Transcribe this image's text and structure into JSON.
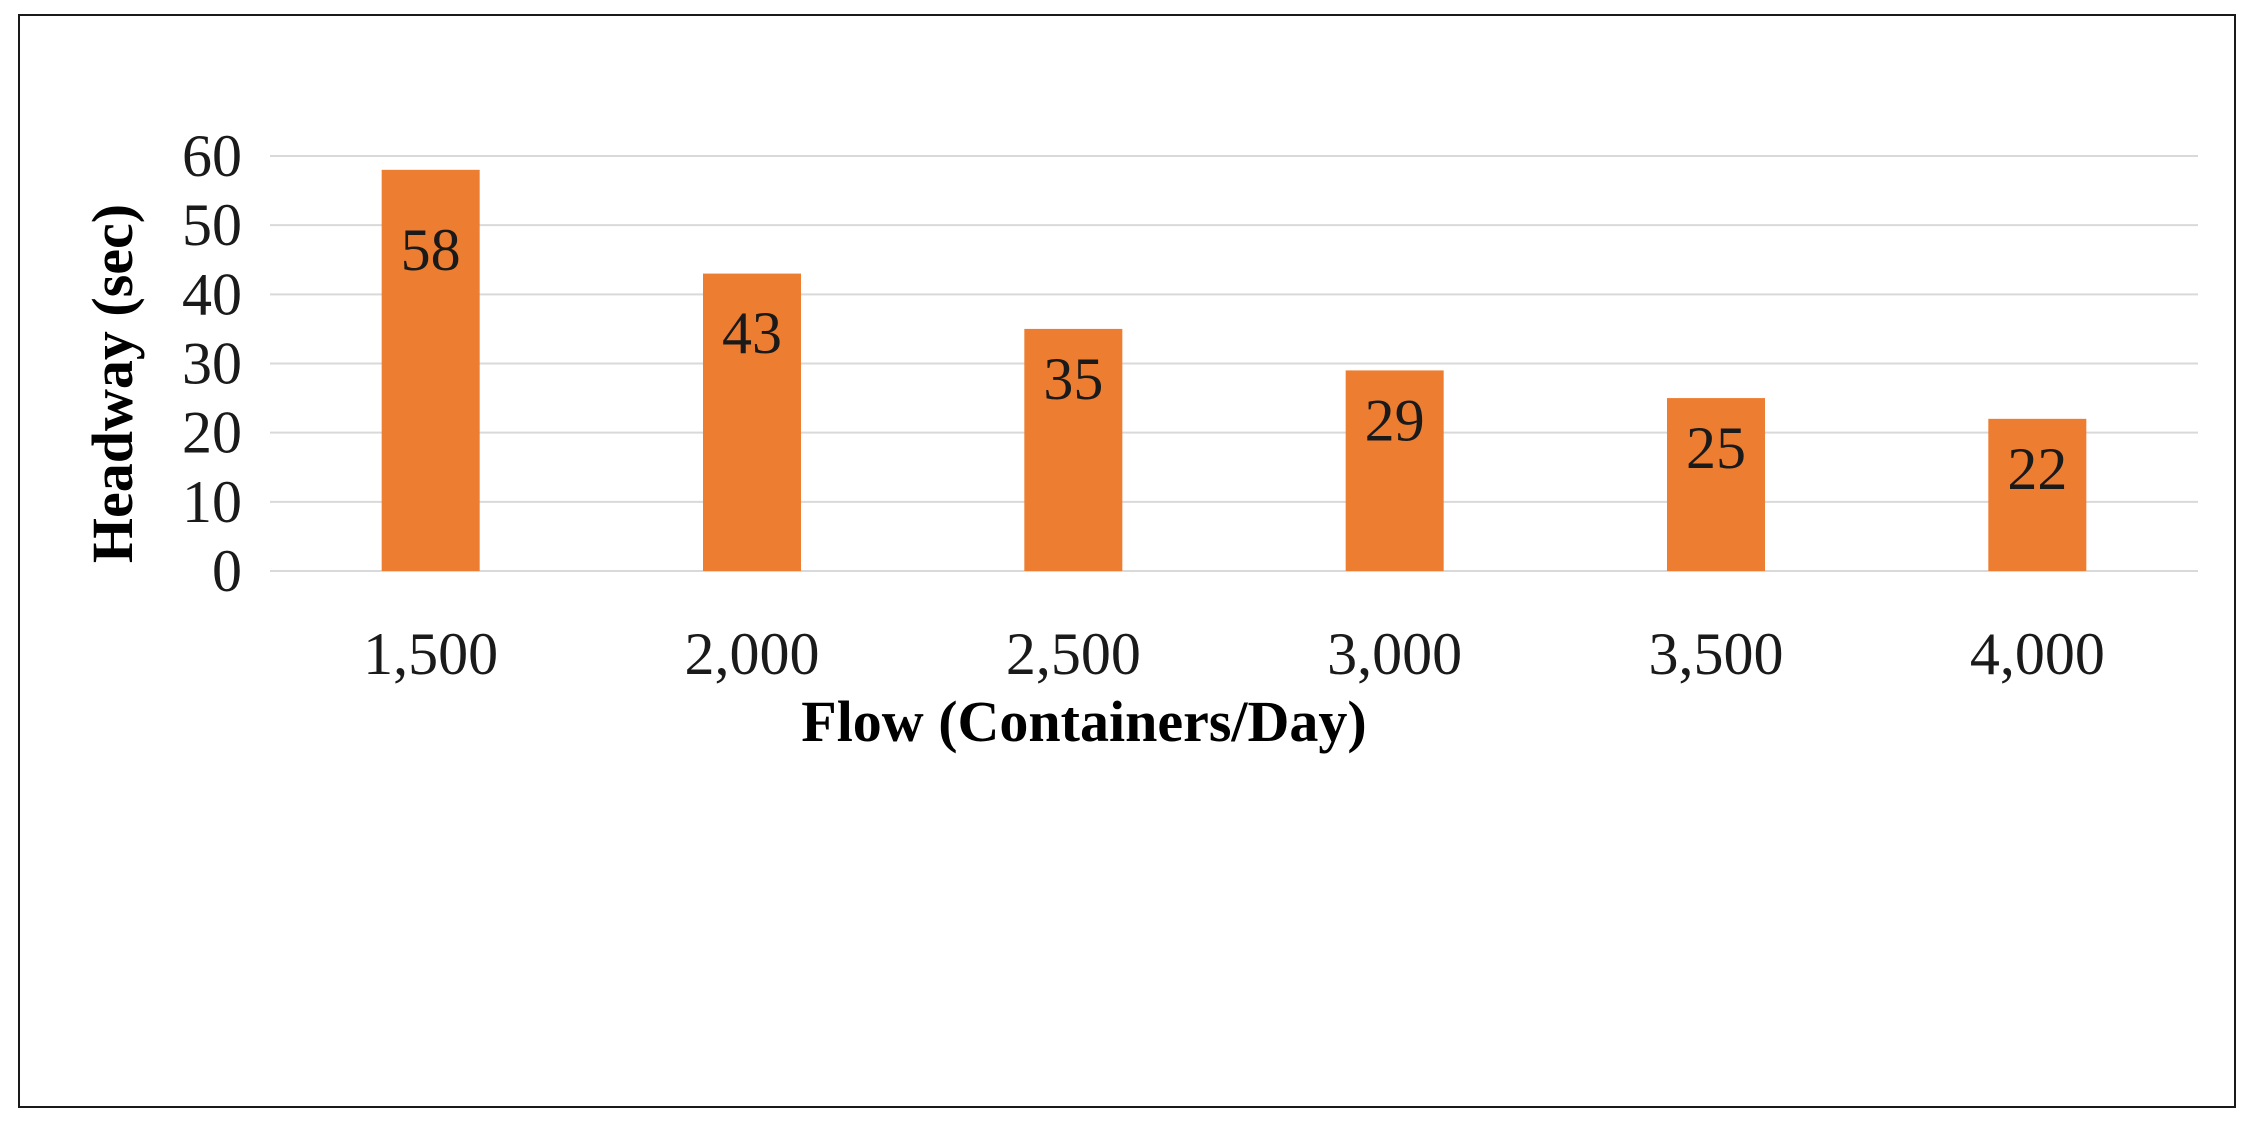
{
  "chart_data": {
    "type": "bar",
    "title": "",
    "xlabel": "Flow (Containers/Day)",
    "ylabel": "Headway (sec)",
    "categories": [
      "1,500",
      "2,000",
      "2,500",
      "3,000",
      "3,500",
      "4,000"
    ],
    "values": [
      58,
      43,
      35,
      29,
      25,
      22
    ],
    "data_labels": [
      "58",
      "43",
      "35",
      "29",
      "25",
      "22"
    ],
    "y_ticks": [
      0,
      10,
      20,
      30,
      40,
      50,
      60
    ],
    "ylim": [
      0,
      60
    ],
    "grid": true,
    "legend": "none",
    "bar_color": "#ED7D31",
    "grid_color": "#D9D9D9"
  }
}
